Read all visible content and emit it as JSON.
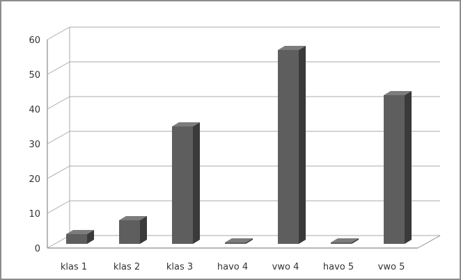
{
  "chart_data": {
    "type": "bar",
    "title": "",
    "xlabel": "",
    "ylabel": "",
    "categories": [
      "klas 1",
      "klas 2",
      "klas 3",
      "havo 4",
      "vwo 4",
      "havo 5",
      "vwo 5"
    ],
    "values": [
      4,
      8,
      35,
      1,
      57,
      0,
      44
    ],
    "ylim": [
      0,
      60
    ],
    "yticks": [
      "0",
      "10",
      "20",
      "30",
      "40",
      "50",
      "60"
    ],
    "grid": true,
    "legend": "none",
    "style": "3d-column",
    "colors": {
      "bar_front": "#5e5e5e",
      "bar_side": "#3a3a3a",
      "bar_top": "#7c7c7c",
      "gridline": "#a8a8a8",
      "axis": "#8a8a8a",
      "text": "#333333"
    }
  }
}
